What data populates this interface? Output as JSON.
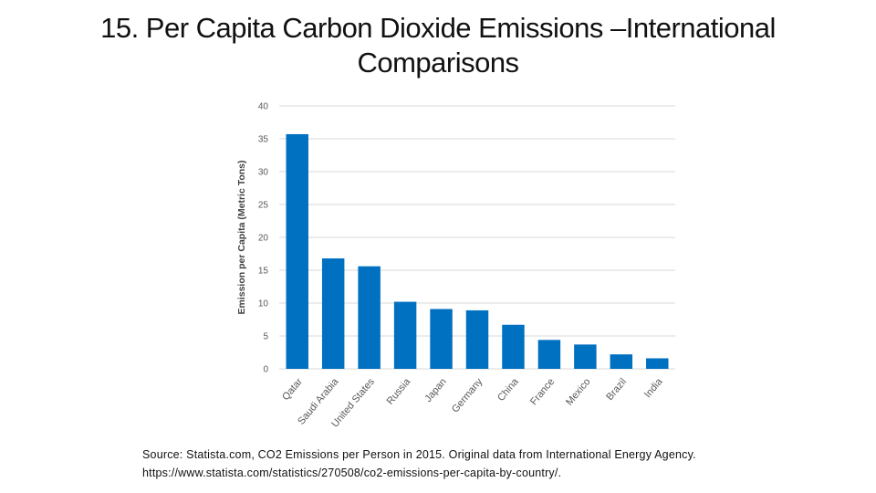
{
  "slide": {
    "title_line1": "15. Per Capita Carbon Dioxide Emissions –International",
    "title_line2": "Comparisons",
    "source_line1": "Source: Statista.com, CO2 Emissions per Person in 2015. Original data from International Energy Agency.",
    "source_line2": "https://www.statista.com/statistics/270508/co2-emissions-per-capita-by-country/."
  },
  "chart_data": {
    "type": "bar",
    "title": "",
    "xlabel": "",
    "ylabel": "Emission per Capita (Metric Tons)",
    "ylim": [
      0,
      40
    ],
    "yticks": [
      0,
      5,
      10,
      15,
      20,
      25,
      30,
      35,
      40
    ],
    "grid": true,
    "categories": [
      "Qatar",
      "Saudi Arabia",
      "United States",
      "Russia",
      "Japan",
      "Germany",
      "China",
      "France",
      "Mexico",
      "Brazil",
      "India"
    ],
    "values": [
      35.7,
      16.8,
      15.6,
      10.2,
      9.1,
      8.9,
      6.7,
      4.4,
      3.7,
      2.2,
      1.6
    ],
    "bar_color": "#0070C0",
    "grid_color": "#D9D9D9"
  }
}
